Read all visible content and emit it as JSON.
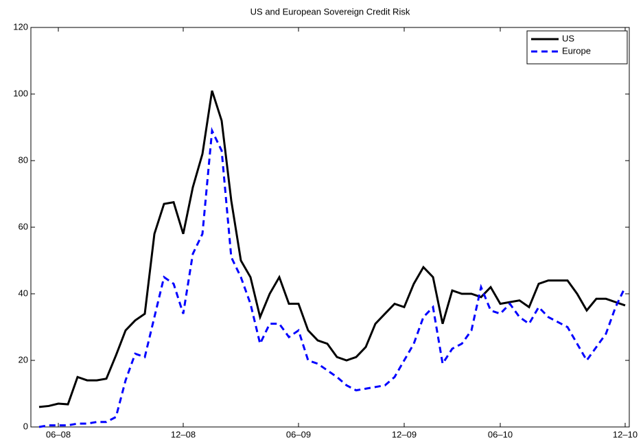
{
  "chart_data": {
    "type": "line",
    "title": "US and European Sovereign Credit Risk",
    "categories": [
      null,
      null,
      "06–08",
      null,
      null,
      null,
      null,
      null,
      null,
      null,
      null,
      null,
      null,
      null,
      null,
      "12–08",
      null,
      null,
      null,
      null,
      null,
      null,
      null,
      null,
      null,
      null,
      null,
      "06–09",
      null,
      null,
      null,
      null,
      null,
      null,
      null,
      null,
      null,
      null,
      "12–09",
      null,
      null,
      null,
      null,
      null,
      null,
      null,
      null,
      null,
      "06–10",
      null,
      null,
      null,
      null,
      null,
      null,
      null,
      null,
      null,
      null,
      null,
      null,
      "12–10"
    ],
    "series": [
      {
        "name": "US",
        "color": "#000000",
        "dash": "solid",
        "values": [
          6,
          6.3,
          7,
          6.8,
          15,
          14,
          14,
          14.5,
          21.5,
          29,
          32,
          34,
          58,
          67,
          67.5,
          58,
          72,
          82,
          101,
          92,
          68,
          50,
          45,
          33,
          40,
          45,
          37,
          37,
          29,
          26,
          25,
          21,
          20,
          21,
          24,
          31,
          34,
          37,
          36,
          43,
          48,
          45,
          31,
          41,
          40,
          40,
          39,
          42,
          37,
          37.5,
          38,
          36,
          43,
          44,
          44,
          44,
          40,
          35,
          38.5,
          38.5,
          37.5,
          36.5
        ]
      },
      {
        "name": "Europe",
        "color": "#0000ff",
        "dash": "dashed",
        "values": [
          0,
          0.5,
          0.5,
          0.5,
          1,
          1,
          1.5,
          1.5,
          3,
          14,
          22,
          21,
          33,
          45,
          43,
          34,
          52,
          58,
          89,
          83,
          51,
          45,
          37,
          25,
          31,
          31,
          27,
          29,
          20,
          19,
          17,
          15,
          12.5,
          11,
          11.5,
          12,
          12.5,
          15,
          20,
          25,
          33,
          36,
          19,
          23.5,
          25,
          29,
          42,
          35,
          34,
          37,
          33,
          31,
          36,
          33,
          31.5,
          30,
          25,
          20,
          24,
          28,
          36,
          42
        ]
      }
    ],
    "ylim": [
      0,
      120
    ],
    "yticks": [
      0,
      20,
      40,
      60,
      80,
      100,
      120
    ],
    "grid": false,
    "legend": "top-right"
  }
}
